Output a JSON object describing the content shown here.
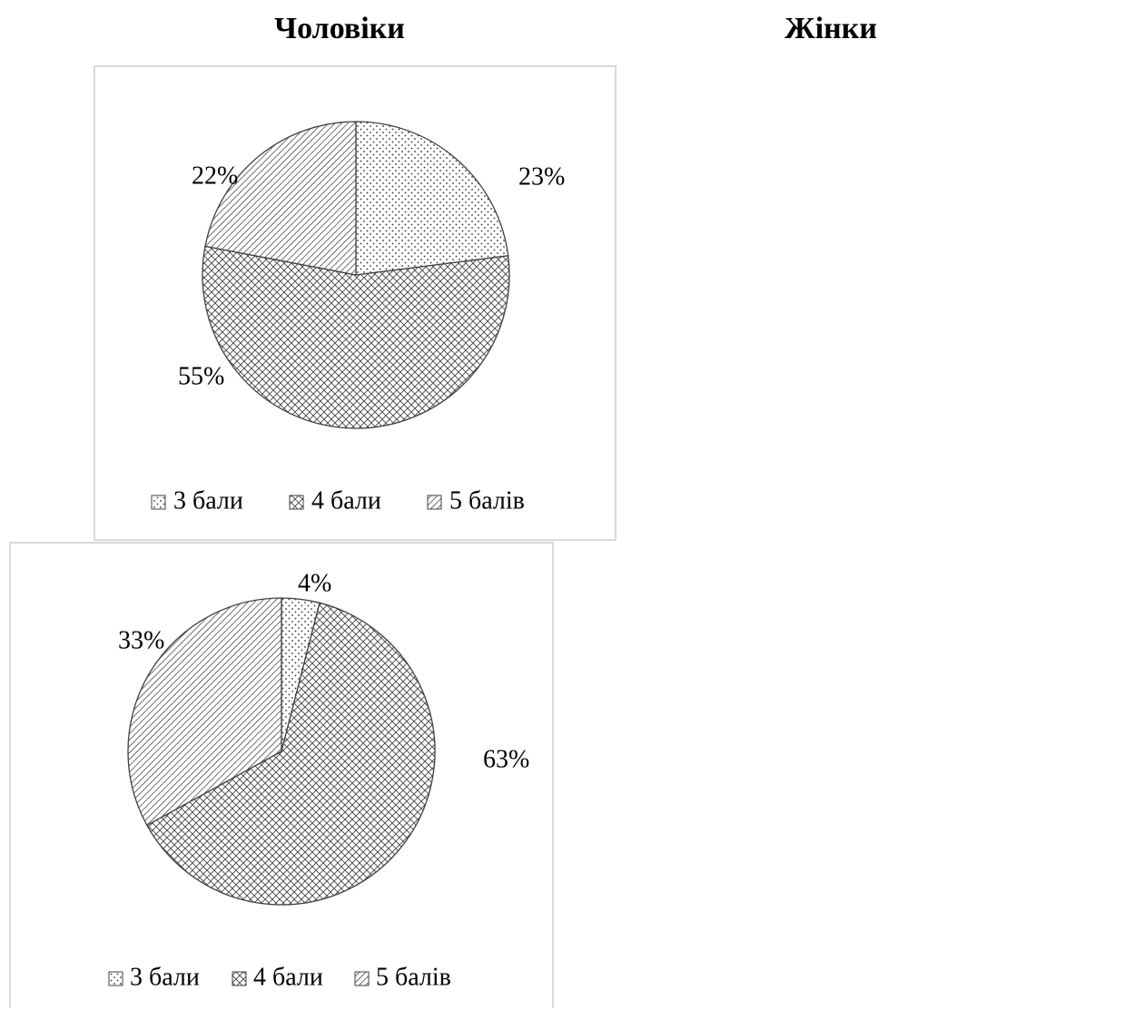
{
  "headings": {
    "left": "Чоловіки",
    "right": "Жінки"
  },
  "chart_data": [
    {
      "type": "pie",
      "categories": [
        "3 бали",
        "4 бали",
        "5 балів"
      ],
      "values": [
        23,
        55,
        22
      ],
      "labels": [
        "23%",
        "55%",
        "22%"
      ],
      "legend": [
        "3 бали",
        "4 бали",
        "5 балів"
      ],
      "legend_position": "bottom",
      "patterns": [
        "dots",
        "crosshatch",
        "diagonal-lines"
      ]
    },
    {
      "type": "pie",
      "categories": [
        "3 бали",
        "4 бали",
        "5 балів"
      ],
      "values": [
        4,
        63,
        33
      ],
      "labels": [
        "4%",
        "63%",
        "33%"
      ],
      "legend": [
        "3 бали",
        "4 бали",
        "5 балів"
      ],
      "legend_position": "bottom",
      "patterns": [
        "dots",
        "crosshatch",
        "diagonal-lines"
      ]
    }
  ]
}
